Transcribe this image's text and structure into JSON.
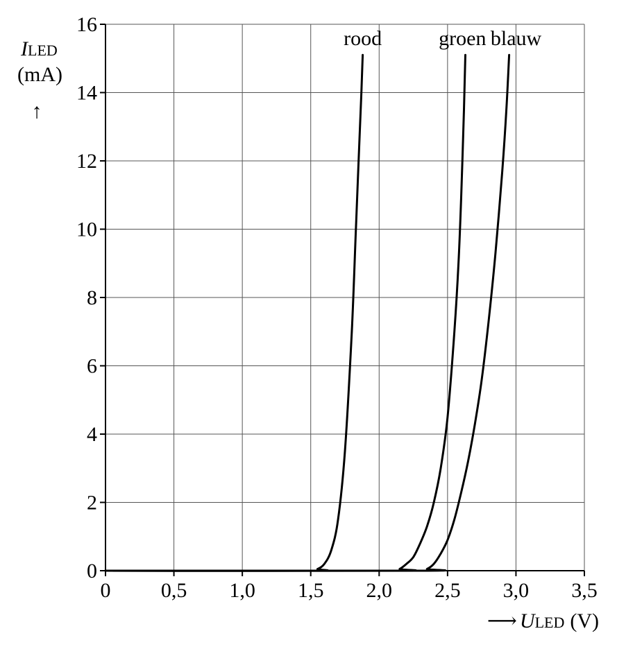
{
  "chart_data": {
    "type": "line",
    "title": "",
    "ylabel": {
      "symbol": "I",
      "subscript": "LED",
      "unit": "(mA)",
      "arrow": "↑"
    },
    "xlabel": {
      "arrow": "⟶",
      "symbol": "U",
      "subscript": "LED",
      "unit": "(V)"
    },
    "xlim": [
      0,
      3.5
    ],
    "ylim": [
      0,
      16
    ],
    "x_ticks": [
      0,
      0.5,
      1.0,
      1.5,
      2.0,
      2.5,
      3.0,
      3.5
    ],
    "x_tick_labels": [
      "0",
      "0,5",
      "1,0",
      "1,5",
      "2,0",
      "2,5",
      "3,0",
      "3,5"
    ],
    "y_ticks": [
      0,
      2,
      4,
      6,
      8,
      10,
      12,
      14,
      16
    ],
    "y_tick_labels": [
      "0",
      "2",
      "4",
      "6",
      "8",
      "10",
      "12",
      "14",
      "16"
    ],
    "grid": true,
    "series": [
      {
        "name": "rood",
        "x": [
          0,
          1.5,
          1.55,
          1.6,
          1.65,
          1.7,
          1.75,
          1.8,
          1.83,
          1.85,
          1.87,
          1.88
        ],
        "y": [
          0,
          0,
          0.05,
          0.2,
          0.6,
          1.5,
          3.5,
          7.0,
          10.0,
          12.0,
          14.0,
          15.1
        ]
      },
      {
        "name": "groen",
        "x": [
          0,
          2.1,
          2.15,
          2.2,
          2.25,
          2.3,
          2.35,
          2.4,
          2.45,
          2.5,
          2.55,
          2.58,
          2.6,
          2.62,
          2.63
        ],
        "y": [
          0,
          0,
          0.05,
          0.2,
          0.4,
          0.8,
          1.3,
          2.0,
          3.0,
          4.5,
          7.0,
          9.0,
          11.0,
          13.5,
          15.1
        ]
      },
      {
        "name": "blauw",
        "x": [
          0,
          2.3,
          2.35,
          2.4,
          2.45,
          2.5,
          2.55,
          2.6,
          2.65,
          2.7,
          2.75,
          2.8,
          2.85,
          2.9,
          2.93,
          2.95
        ],
        "y": [
          0,
          0,
          0.05,
          0.2,
          0.5,
          0.9,
          1.5,
          2.3,
          3.2,
          4.3,
          5.6,
          7.3,
          9.3,
          11.7,
          13.5,
          15.1
        ]
      }
    ]
  }
}
